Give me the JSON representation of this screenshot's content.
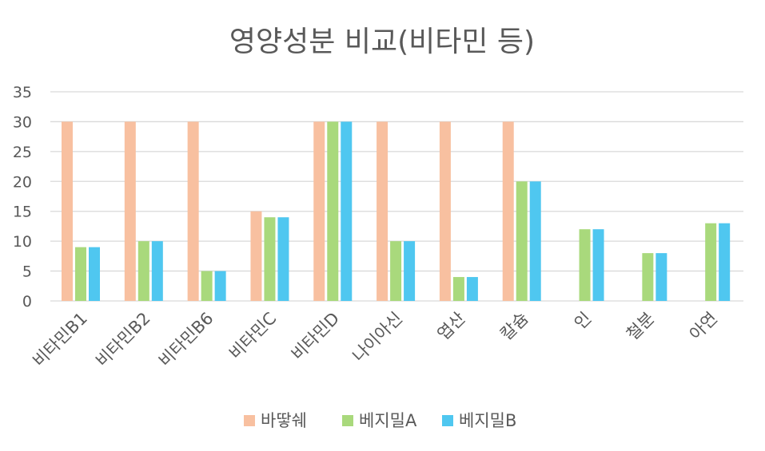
{
  "chart_data": {
    "type": "bar",
    "title": "영양성분 비교(비타민 등)",
    "categories": [
      "비타민B1",
      "비타민B2",
      "비타민B6",
      "비타민C",
      "비타민D",
      "나이아신",
      "엽산",
      "칼슘",
      "인",
      "철분",
      "아연"
    ],
    "series": [
      {
        "name": "바땋쉐",
        "color": "#F8C0A0",
        "values": [
          30,
          30,
          30,
          15,
          30,
          30,
          30,
          30,
          null,
          null,
          null
        ]
      },
      {
        "name": "베지밀A",
        "color": "#A9D97C",
        "values": [
          9,
          10,
          5,
          14,
          30,
          10,
          4,
          20,
          12,
          8,
          13
        ]
      },
      {
        "name": "베지밀B",
        "color": "#4FC7F0",
        "values": [
          9,
          10,
          5,
          14,
          30,
          10,
          4,
          20,
          12,
          8,
          13
        ]
      }
    ],
    "yticks": [
      "0",
      "5",
      "10",
      "15",
      "20",
      "25",
      "30",
      "35"
    ],
    "ylim": [
      0,
      35
    ],
    "grid": true,
    "legend_position": "bottom",
    "gridline_color": "#D9D9D9"
  }
}
